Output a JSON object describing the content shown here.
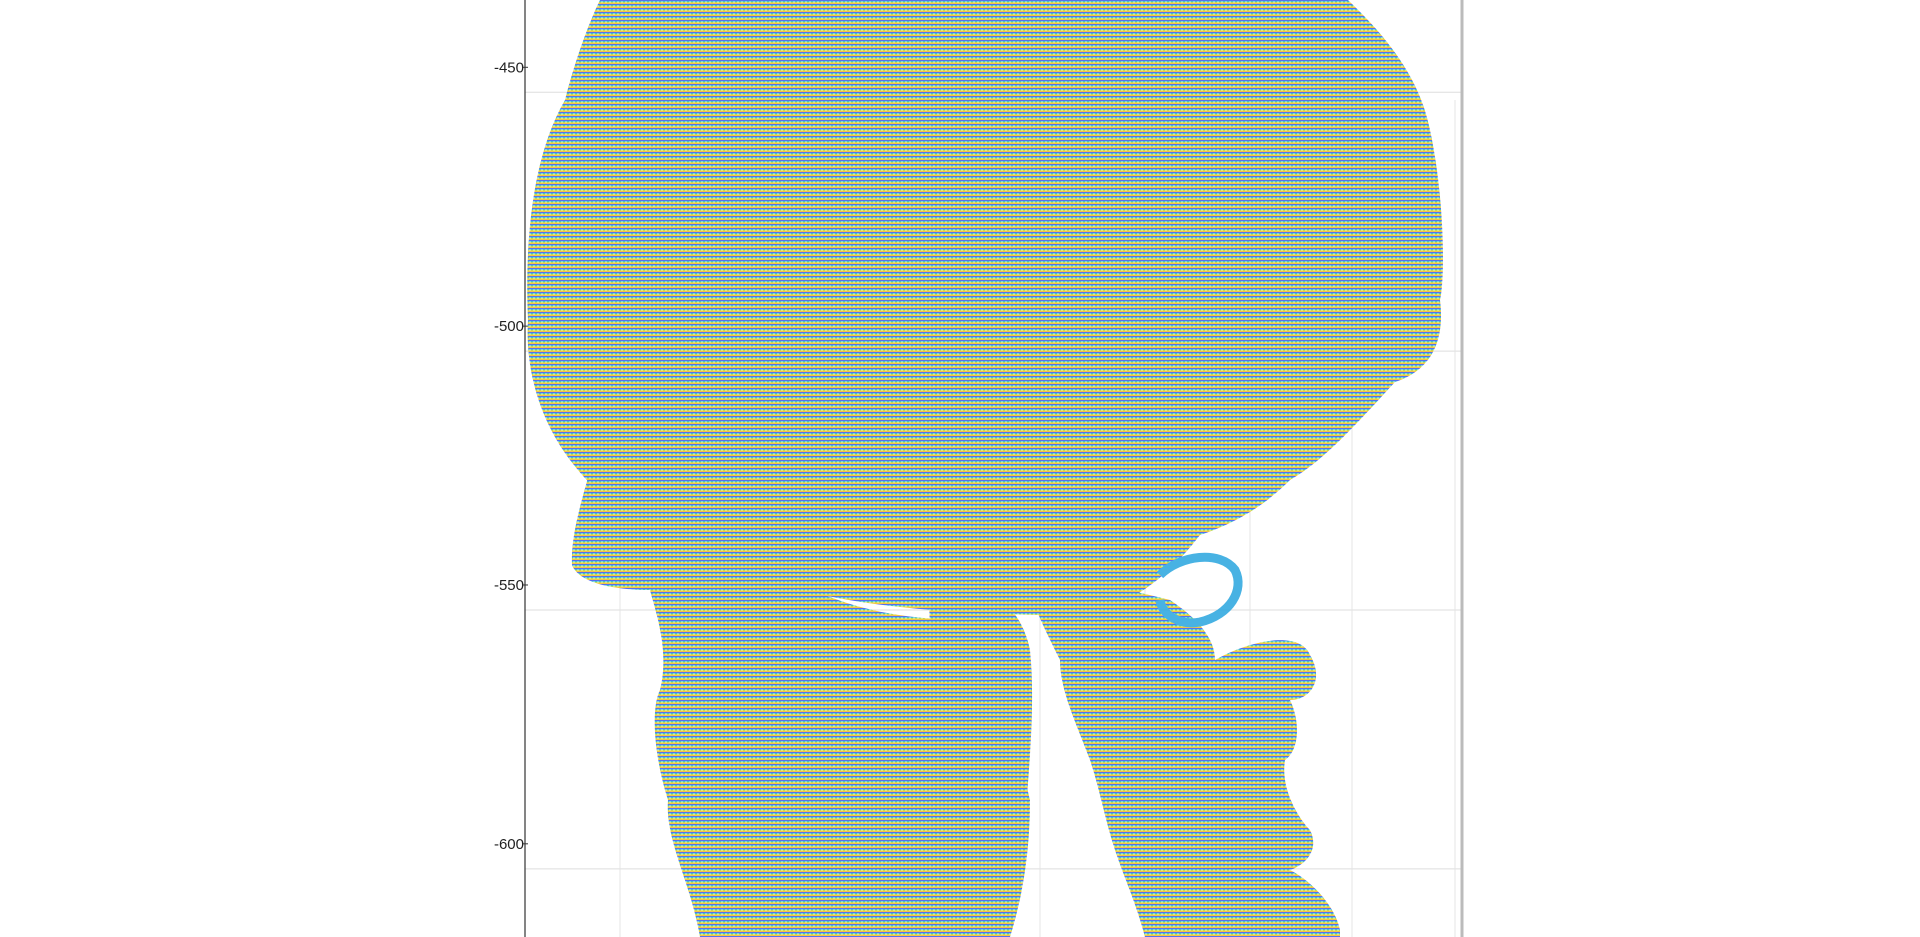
{
  "chart_data": {
    "type": "scatter",
    "title": "",
    "xlabel": "",
    "ylabel": "",
    "yticks": [
      -450,
      -500,
      -550,
      -600
    ],
    "ylim": [
      -618,
      -437
    ],
    "grid": true,
    "colormap": [
      "#4b3ce8",
      "#3a6ff0",
      "#22b3dc",
      "#2cc7a6",
      "#8fd44a",
      "#e9d42a",
      "#f6c428",
      "#f2aa2c"
    ],
    "series": []
  }
}
